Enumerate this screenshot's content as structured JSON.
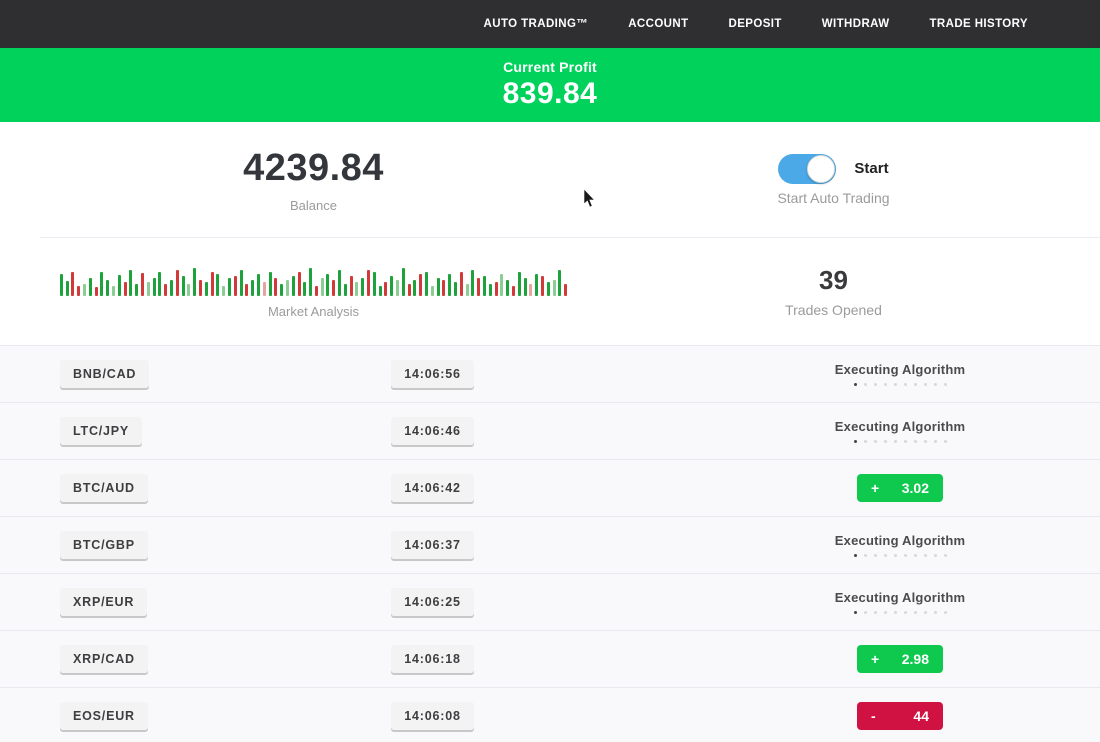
{
  "nav": {
    "items": [
      "AUTO TRADING™",
      "ACCOUNT",
      "DEPOSIT",
      "WITHDRAW",
      "TRADE HISTORY"
    ]
  },
  "profit_banner": {
    "label": "Current Profit",
    "value": "839.84",
    "bg_color": "#00d25c"
  },
  "stats": {
    "balance": {
      "value": "4239.84",
      "label": "Balance"
    },
    "auto_trading": {
      "toggle_on": true,
      "toggle_color": "#4aa9e6",
      "toggle_label": "Start",
      "caption": "Start Auto Trading"
    },
    "market_analysis": {
      "label": "Market Analysis",
      "bar_colors": {
        "g": "#1ea23c",
        "G": "#8bcd92",
        "r": "#d23939",
        "R": "#e7a2a2"
      },
      "bars": "g22 g15 r24 r10 G12 g18 r9 g24 g16 G10 g21 r14 g26 g12 r23 G14 g18 g24 r12 g16 r26 g20 G12 g28 r16 g14 r24 g22 G10 g18 r20 g26 r12 g16 g22 R14 g24 r18 g12 G16 g20 r24 g14 g28 r10 G18 g22 r16 g26 g12 r20 G14 g18 r26 g24 g10 r14 g20 G16 g28 r12 g16 r22 g24 G10 g18 r16 g22 g14 r24 G12 g26 r18 g20 g12 r14 G22 g16 r10 g24 g18 R12 g22 r20 g14 G16 g26 r12"
    },
    "trades_opened": {
      "value": "39",
      "label": "Trades Opened"
    }
  },
  "trades_list": {
    "executing_label": "Executing Algorithm",
    "progress_dots": {
      "total": 10,
      "active": 1
    },
    "result_colors": {
      "profit": "#0fc94f",
      "loss": "#d01243"
    },
    "rows": [
      {
        "pair": "BNB/CAD",
        "time": "14:06:56",
        "status": "executing"
      },
      {
        "pair": "LTC/JPY",
        "time": "14:06:46",
        "status": "executing"
      },
      {
        "pair": "BTC/AUD",
        "time": "14:06:42",
        "status": "result",
        "sign": "+",
        "amount": "3.02",
        "kind": "profit"
      },
      {
        "pair": "BTC/GBP",
        "time": "14:06:37",
        "status": "executing"
      },
      {
        "pair": "XRP/EUR",
        "time": "14:06:25",
        "status": "executing"
      },
      {
        "pair": "XRP/CAD",
        "time": "14:06:18",
        "status": "result",
        "sign": "+",
        "amount": "2.98",
        "kind": "profit"
      },
      {
        "pair": "EOS/EUR",
        "time": "14:06:08",
        "status": "result",
        "sign": "-",
        "amount": "44",
        "kind": "loss"
      }
    ]
  }
}
